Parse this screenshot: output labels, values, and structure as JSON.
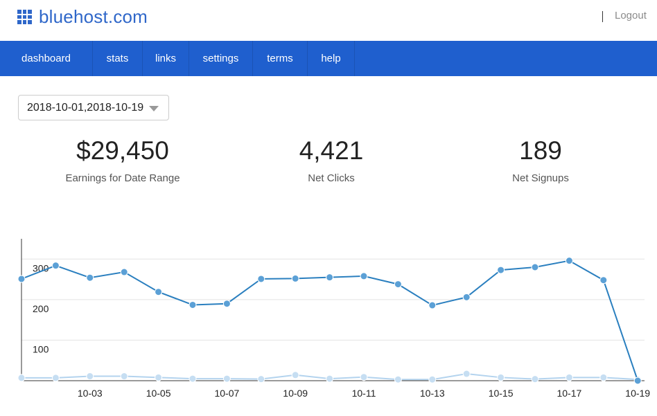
{
  "header": {
    "logo_text": "bluehost.com",
    "logout_label": "Logout"
  },
  "nav": {
    "items": [
      {
        "label": "dashboard"
      },
      {
        "label": "stats"
      },
      {
        "label": "links"
      },
      {
        "label": "settings"
      },
      {
        "label": "terms"
      },
      {
        "label": "help"
      }
    ]
  },
  "filters": {
    "date_range_value": "2018-10-01,2018-10-19"
  },
  "stats": {
    "earnings": {
      "value": "$29,450",
      "label": "Earnings for Date Range"
    },
    "clicks": {
      "value": "4,421",
      "label": "Net Clicks"
    },
    "signups": {
      "value": "189",
      "label": "Net Signups"
    }
  },
  "colors": {
    "brand_blue": "#1f5fce",
    "series_primary": "#2a7fbf",
    "series_secondary": "#b3d3ee"
  },
  "chart_data": {
    "type": "line",
    "x": [
      "10-01",
      "10-02",
      "10-03",
      "10-04",
      "10-05",
      "10-06",
      "10-07",
      "10-08",
      "10-09",
      "10-10",
      "10-11",
      "10-12",
      "10-13",
      "10-14",
      "10-15",
      "10-16",
      "10-17",
      "10-18",
      "10-19"
    ],
    "x_tick_labels": [
      "10-03",
      "10-05",
      "10-07",
      "10-09",
      "10-11",
      "10-13",
      "10-15",
      "10-17",
      "10-19"
    ],
    "y_tick_labels": [
      "100",
      "200",
      "300"
    ],
    "ylim": [
      0,
      350
    ],
    "grid": true,
    "series": [
      {
        "values": [
          251,
          284,
          254,
          268,
          219,
          187,
          190,
          251,
          252,
          255,
          258,
          238,
          186,
          206,
          273,
          280,
          296,
          248,
          0
        ]
      },
      {
        "values": [
          7,
          7,
          11,
          11,
          8,
          5,
          5,
          4,
          14,
          5,
          9,
          3,
          3,
          17,
          8,
          4,
          8,
          8,
          3
        ]
      }
    ]
  }
}
